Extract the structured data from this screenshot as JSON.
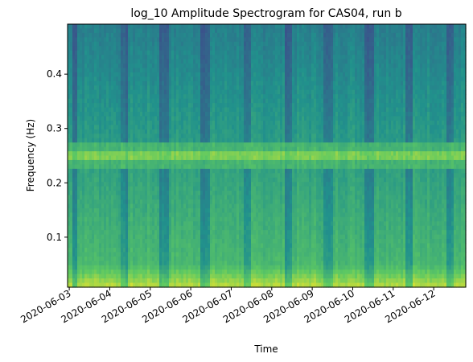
{
  "chart_data": {
    "type": "heatmap",
    "title": "log_10 Amplitude Spectrogram for CAS04, run b",
    "xlabel": "Time",
    "ylabel": "Frequency (Hz)",
    "x_tick_labels": [
      "2020-06-03",
      "2020-06-04",
      "2020-06-05",
      "2020-06-06",
      "2020-06-07",
      "2020-06-08",
      "2020-06-09",
      "2020-06-10",
      "2020-06-11",
      "2020-06-12"
    ],
    "y_ticks": [
      0.1,
      0.2,
      0.3,
      0.4
    ],
    "y_tick_labels": [
      "0.1",
      "0.2",
      "0.3",
      "0.4"
    ],
    "xlim": [
      "2020-06-02T23:00",
      "2020-06-12T19:00"
    ],
    "ylim": [
      0.008,
      0.492
    ],
    "colormap": "viridis",
    "band_center_hz": 0.25,
    "band_halfwidth_hz": 0.012,
    "dark_time_stripes_days": [
      [
        0.05,
        0.22
      ],
      [
        1.25,
        1.45
      ],
      [
        2.25,
        2.45
      ],
      [
        3.25,
        3.45
      ],
      [
        4.3,
        4.5
      ],
      [
        5.3,
        5.5
      ],
      [
        6.3,
        6.5
      ],
      [
        7.3,
        7.5
      ],
      [
        8.3,
        8.5
      ],
      [
        9.3,
        9.5
      ]
    ],
    "grid": false
  }
}
